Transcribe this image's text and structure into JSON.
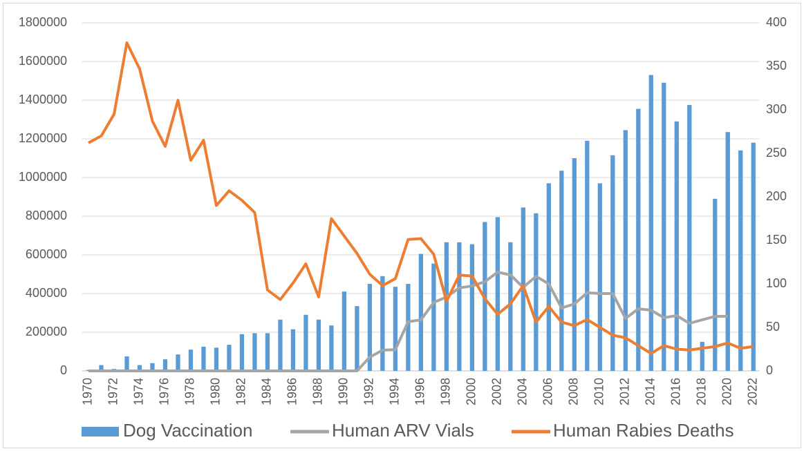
{
  "chart_data": {
    "type": "bar",
    "categories": [
      "1970",
      null,
      "1972",
      null,
      "1974",
      null,
      "1976",
      null,
      "1978",
      null,
      "1980",
      null,
      "1982",
      null,
      "1984",
      null,
      "1986",
      null,
      "1988",
      null,
      "1990",
      null,
      "1992",
      null,
      "1994",
      null,
      "1996",
      null,
      "1998",
      null,
      "2000",
      null,
      "2002",
      null,
      "2004",
      null,
      "2006",
      null,
      "2008",
      null,
      "2010",
      null,
      "2012",
      null,
      "2014",
      null,
      "2016",
      null,
      "2018",
      null,
      "2020",
      null,
      "2022"
    ],
    "series": [
      {
        "name": "Dog Vaccination",
        "type": "bar",
        "color": "#5b9bd5",
        "axis": "y",
        "values": [
          5000,
          30000,
          10000,
          75000,
          30000,
          40000,
          60000,
          85000,
          110000,
          125000,
          120000,
          135000,
          190000,
          195000,
          195000,
          265000,
          215000,
          290000,
          265000,
          235000,
          410000,
          335000,
          450000,
          490000,
          435000,
          450000,
          605000,
          555000,
          665000,
          665000,
          655000,
          770000,
          795000,
          665000,
          845000,
          815000,
          970000,
          1035000,
          1100000,
          1190000,
          970000,
          1115000,
          1245000,
          1355000,
          1530000,
          1490000,
          1290000,
          1375000,
          150000,
          890000,
          1235000,
          1140000,
          1180000
        ]
      },
      {
        "name": "Human ARV Vials",
        "type": "line",
        "color": "#a5a5a5",
        "axis": "y",
        "values": [
          0,
          0,
          0,
          0,
          0,
          0,
          0,
          0,
          0,
          0,
          0,
          0,
          0,
          0,
          0,
          0,
          0,
          0,
          0,
          0,
          0,
          0,
          71000,
          107000,
          110000,
          254000,
          264000,
          354000,
          382000,
          429000,
          439000,
          461000,
          511000,
          496000,
          432000,
          489000,
          450000,
          325000,
          346000,
          404000,
          400000,
          400000,
          271000,
          321000,
          314000,
          275000,
          286000,
          246000,
          264000,
          282000,
          282000,
          null,
          null
        ]
      },
      {
        "name": "Human Rabies Deaths",
        "type": "line",
        "color": "#ed7d31",
        "axis": "y2",
        "values": [
          262,
          270,
          295,
          377,
          347,
          287,
          258,
          311,
          242,
          265,
          190,
          207,
          196,
          182,
          93,
          82,
          101,
          123,
          85,
          175,
          155,
          135,
          111,
          98,
          106,
          151,
          152,
          134,
          80,
          110,
          109,
          83,
          65,
          77,
          98,
          56,
          74,
          56,
          52,
          59,
          50,
          41,
          38,
          29,
          20,
          29,
          25,
          24,
          26,
          28,
          32,
          26,
          28
        ]
      }
    ],
    "ylim": [
      0,
      1800000
    ],
    "yticks": [
      0,
      200000,
      400000,
      600000,
      800000,
      1000000,
      1200000,
      1400000,
      1600000,
      1800000
    ],
    "y2lim": [
      0,
      400
    ],
    "y2ticks": [
      0,
      50,
      100,
      150,
      200,
      250,
      300,
      350,
      400
    ],
    "grid": true,
    "legend": "bottom"
  }
}
